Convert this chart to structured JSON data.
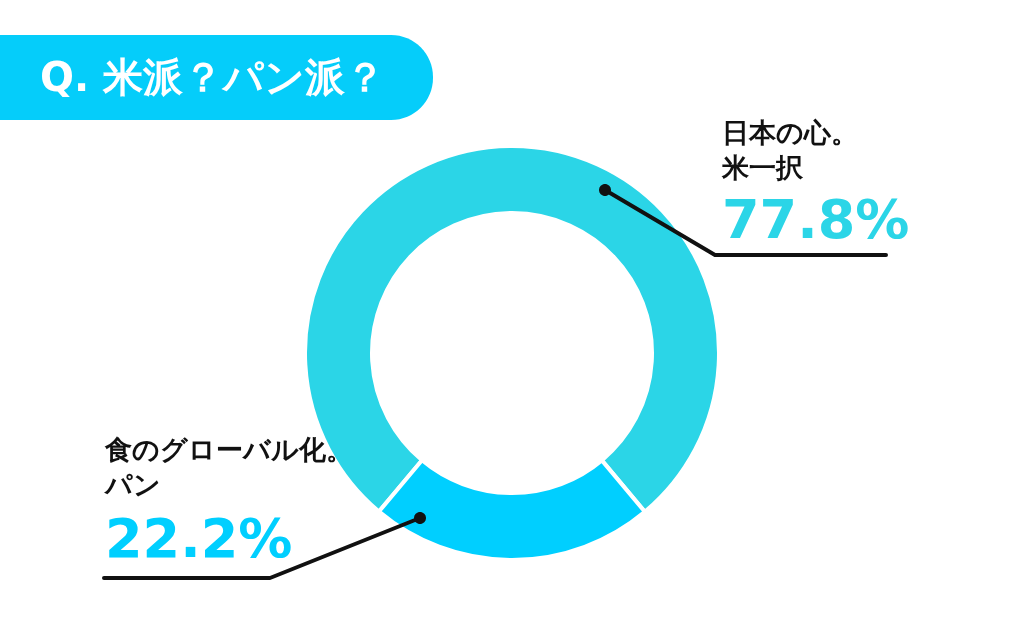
{
  "chart_data": {
    "type": "donut",
    "title": "Q. 米派？パン派？",
    "categories": [
      "日本の心。米一択",
      "食のグローバル化。パン"
    ],
    "values": [
      77.8,
      22.2
    ],
    "colors": [
      "#2bd5e7",
      "#00cfff"
    ],
    "value_labels": [
      "77.8%",
      "22.2%"
    ]
  }
}
